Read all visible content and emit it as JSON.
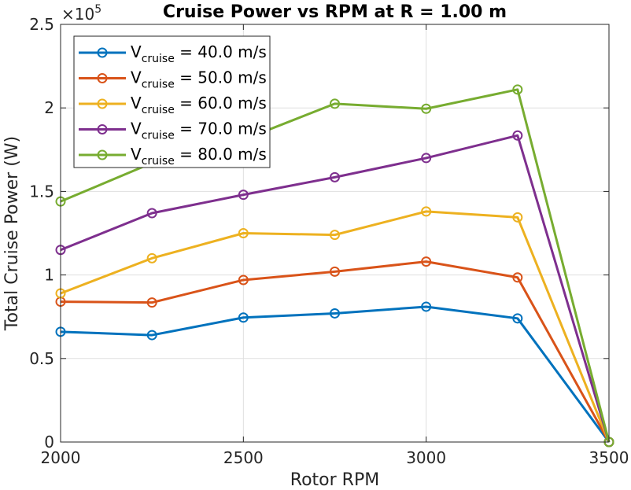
{
  "chart_data": {
    "type": "line",
    "title": "Cruise Power vs RPM at R = 1.00 m",
    "xlabel": "Rotor RPM",
    "ylabel": "Total Cruise Power (W)",
    "xlim": [
      2000,
      3500
    ],
    "ylim": [
      0,
      250000
    ],
    "y_exponent_label": "×10^5",
    "y_exponent_base": "×10",
    "y_exponent_power": "5",
    "grid": true,
    "legend_position": "top-left",
    "x_ticks": [
      2000,
      2500,
      3000,
      3500
    ],
    "x_tick_labels": [
      "2000",
      "2500",
      "3000",
      "3500"
    ],
    "y_ticks": [
      0,
      50000,
      100000,
      150000,
      200000,
      250000
    ],
    "y_tick_labels": [
      "0",
      "0.5",
      "1",
      "1.5",
      "2",
      "2.5"
    ],
    "x": [
      2000,
      2250,
      2500,
      2750,
      3000,
      3250,
      3500
    ],
    "series": [
      {
        "name_base": "V",
        "name_sub": "cruise",
        "name_rest": " = 40.0 m/s",
        "color": "#0072BD",
        "values": [
          66000,
          64000,
          74500,
          77000,
          81000,
          74000,
          0
        ]
      },
      {
        "name_base": "V",
        "name_sub": "cruise",
        "name_rest": " = 50.0 m/s",
        "color": "#D95319",
        "values": [
          84000,
          83500,
          97000,
          102000,
          108000,
          98500,
          0
        ]
      },
      {
        "name_base": "V",
        "name_sub": "cruise",
        "name_rest": " = 60.0 m/s",
        "color": "#EDB120",
        "values": [
          89000,
          110000,
          125000,
          124000,
          138000,
          134500,
          0
        ]
      },
      {
        "name_base": "V",
        "name_sub": "cruise",
        "name_rest": " = 70.0 m/s",
        "color": "#7E2F8E",
        "values": [
          115000,
          137000,
          148000,
          158500,
          170000,
          183500,
          0
        ]
      },
      {
        "name_base": "V",
        "name_sub": "cruise",
        "name_rest": " = 80.0 m/s",
        "color": "#77AC30",
        "values": [
          144000,
          167000,
          181000,
          202500,
          199500,
          211000,
          0
        ]
      }
    ]
  }
}
